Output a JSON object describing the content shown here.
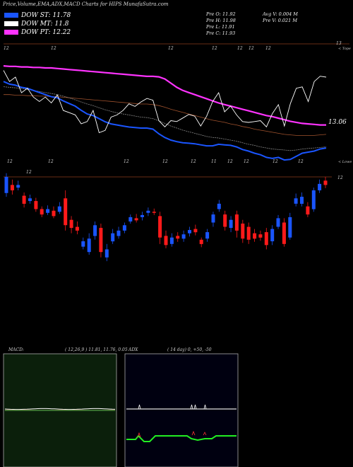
{
  "header": {
    "title": "Price,Volume,EMA,ADX,MACD Charts for HIPS MunafaSutra.com"
  },
  "legend": [
    {
      "label": "DOW ST: 11.78",
      "color": "#1a55ff"
    },
    {
      "label": "DOW MT: 11.8",
      "color": "#ffffff"
    },
    {
      "label": "DOW PT: 12.22",
      "color": "#ff33ff"
    }
  ],
  "stats": {
    "prev_o": "Pre   O: 11.92",
    "prev_h": "Pre   H: 11.98",
    "prev_l": "Pre   L: 11.91",
    "prev_c": "Pre   C: 11.93",
    "avg_v": "Avg V: 0.004   M",
    "prev_v": "Pre   V: 0.021 M"
  },
  "upper": {
    "top_tag": "13",
    "top_label": "< Tope",
    "last_value": "13.06",
    "lower_tag": "< Lowe",
    "date_ticks": [
      "12",
      "12",
      "12",
      "12",
      "12",
      "12",
      "12"
    ],
    "date_ticks2": [
      "12",
      "12",
      "12",
      "12",
      "12",
      "11",
      "12",
      "12",
      "12",
      "12"
    ]
  },
  "lower": {
    "right_label": "12",
    "date_ticks": [
      "12"
    ]
  },
  "macd": {
    "label": "MACD:",
    "params": "( 12,26,9 ) 11.81,  11.76,  0.05"
  },
  "adx": {
    "label": "ADX",
    "params": "( 14  day) 0, +50, -50"
  },
  "colors": {
    "bull": "#1a55ff",
    "bear": "#ff1a1a",
    "ema_fast": "#1a55ff",
    "ema_pt": "#ff33ff",
    "price": "#ffffff",
    "ema_mid": "#888888",
    "ema_slow": "#a0522d"
  },
  "chart_data": {
    "type": "candlestick",
    "title": "Price,Volume,EMA,ADX,MACD Charts for HIPS",
    "ema_last": {
      "st": 11.78,
      "mt": 11.8,
      "pt": 12.22
    },
    "previous_bar": {
      "open": 11.92,
      "high": 11.98,
      "low": 11.91,
      "close": 11.93,
      "volume_m": 0.021,
      "avg_volume_m": 0.004
    },
    "candles": [
      {
        "o": 12.25,
        "c": 12.55,
        "h": 12.62,
        "l": 12.18
      },
      {
        "o": 12.4,
        "c": 12.3,
        "h": 12.5,
        "l": 12.22
      },
      {
        "o": 12.35,
        "c": 12.4,
        "h": 12.48,
        "l": 12.3
      },
      {
        "o": 12.2,
        "c": 12.05,
        "h": 12.26,
        "l": 11.98
      },
      {
        "o": 12.1,
        "c": 12.15,
        "h": 12.22,
        "l": 12.05
      },
      {
        "o": 12.1,
        "c": 11.95,
        "h": 12.16,
        "l": 11.9
      },
      {
        "o": 11.95,
        "c": 11.85,
        "h": 12.0,
        "l": 11.8
      },
      {
        "o": 11.88,
        "c": 11.95,
        "h": 12.02,
        "l": 11.84
      },
      {
        "o": 11.92,
        "c": 11.82,
        "h": 12.0,
        "l": 11.78
      },
      {
        "o": 11.9,
        "c": 12.0,
        "h": 12.08,
        "l": 11.86
      },
      {
        "o": 12.15,
        "c": 11.65,
        "h": 12.3,
        "l": 11.55
      },
      {
        "o": 11.75,
        "c": 11.6,
        "h": 11.82,
        "l": 11.5
      },
      {
        "o": 11.62,
        "c": 11.55,
        "h": 11.72,
        "l": 11.48
      },
      {
        "o": 11.25,
        "c": 11.35,
        "h": 11.42,
        "l": 11.2
      },
      {
        "o": 11.15,
        "c": 11.4,
        "h": 11.5,
        "l": 11.1
      },
      {
        "o": 11.45,
        "c": 11.65,
        "h": 11.72,
        "l": 11.38
      },
      {
        "o": 11.6,
        "c": 11.15,
        "h": 11.68,
        "l": 11.05
      },
      {
        "o": 11.05,
        "c": 11.2,
        "h": 11.3,
        "l": 10.98
      },
      {
        "o": 11.35,
        "c": 11.5,
        "h": 11.58,
        "l": 11.3
      },
      {
        "o": 11.45,
        "c": 11.55,
        "h": 11.62,
        "l": 11.4
      },
      {
        "o": 11.55,
        "c": 11.65,
        "h": 11.7,
        "l": 11.5
      },
      {
        "o": 11.72,
        "c": 11.8,
        "h": 11.85,
        "l": 11.68
      },
      {
        "o": 11.78,
        "c": 11.74,
        "h": 11.86,
        "l": 11.7
      },
      {
        "o": 11.8,
        "c": 11.84,
        "h": 11.9,
        "l": 11.74
      },
      {
        "o": 11.88,
        "c": 11.92,
        "h": 11.98,
        "l": 11.82
      },
      {
        "o": 11.9,
        "c": 11.88,
        "h": 11.96,
        "l": 11.84
      },
      {
        "o": 11.82,
        "c": 11.42,
        "h": 11.9,
        "l": 11.3
      },
      {
        "o": 11.45,
        "c": 11.28,
        "h": 11.55,
        "l": 11.22
      },
      {
        "o": 11.3,
        "c": 11.42,
        "h": 11.5,
        "l": 11.25
      },
      {
        "o": 11.45,
        "c": 11.4,
        "h": 11.52,
        "l": 11.34
      },
      {
        "o": 11.4,
        "c": 11.48,
        "h": 11.55,
        "l": 11.34
      },
      {
        "o": 11.5,
        "c": 11.56,
        "h": 11.62,
        "l": 11.44
      },
      {
        "o": 11.58,
        "c": 11.52,
        "h": 11.66,
        "l": 11.46
      },
      {
        "o": 11.38,
        "c": 11.3,
        "h": 11.42,
        "l": 11.24
      },
      {
        "o": 11.4,
        "c": 11.52,
        "h": 11.58,
        "l": 11.34
      },
      {
        "o": 11.7,
        "c": 11.85,
        "h": 11.9,
        "l": 11.62
      },
      {
        "o": 11.95,
        "c": 12.05,
        "h": 12.12,
        "l": 11.9
      },
      {
        "o": 11.85,
        "c": 11.62,
        "h": 11.92,
        "l": 11.55
      },
      {
        "o": 11.6,
        "c": 11.75,
        "h": 11.82,
        "l": 11.52
      },
      {
        "o": 11.85,
        "c": 11.55,
        "h": 11.92,
        "l": 11.42
      },
      {
        "o": 11.68,
        "c": 11.4,
        "h": 11.75,
        "l": 11.32
      },
      {
        "o": 11.62,
        "c": 11.38,
        "h": 11.7,
        "l": 11.3
      },
      {
        "o": 11.5,
        "c": 11.4,
        "h": 11.58,
        "l": 11.34
      },
      {
        "o": 11.48,
        "c": 11.42,
        "h": 11.55,
        "l": 11.36
      },
      {
        "o": 11.52,
        "c": 11.28,
        "h": 11.6,
        "l": 11.2
      },
      {
        "o": 11.35,
        "c": 11.58,
        "h": 11.65,
        "l": 11.28
      },
      {
        "o": 11.62,
        "c": 11.78,
        "h": 11.84,
        "l": 11.58
      },
      {
        "o": 11.7,
        "c": 11.3,
        "h": 11.78,
        "l": 11.25
      },
      {
        "o": 11.42,
        "c": 11.8,
        "h": 11.88,
        "l": 11.38
      },
      {
        "o": 12.05,
        "c": 12.15,
        "h": 12.24,
        "l": 12.0
      },
      {
        "o": 12.05,
        "c": 12.18,
        "h": 12.26,
        "l": 12.0
      },
      {
        "o": 12.0,
        "c": 11.85,
        "h": 12.08,
        "l": 11.8
      },
      {
        "o": 11.95,
        "c": 12.3,
        "h": 12.35,
        "l": 11.9
      },
      {
        "o": 12.3,
        "c": 12.42,
        "h": 12.5,
        "l": 12.25
      },
      {
        "o": 12.48,
        "c": 12.4,
        "h": 12.55,
        "l": 12.34
      }
    ],
    "ema_series": {
      "pt": [
        13.35,
        13.34,
        13.34,
        13.33,
        13.33,
        13.32,
        13.32,
        13.31,
        13.31,
        13.3,
        13.29,
        13.28,
        13.27,
        13.26,
        13.25,
        13.24,
        13.23,
        13.22,
        13.21,
        13.2,
        13.19,
        13.18,
        13.17,
        13.16,
        13.15,
        13.15,
        13.14,
        13.1,
        13.02,
        12.94,
        12.88,
        12.84,
        12.8,
        12.76,
        12.72,
        12.68,
        12.64,
        12.61,
        12.58,
        12.55,
        12.52,
        12.49,
        12.46,
        12.43,
        12.4,
        12.38,
        12.35,
        12.32,
        12.29,
        12.27,
        12.25,
        12.24,
        12.23,
        12.22,
        12.22
      ],
      "st": [
        13.05,
        13.0,
        12.98,
        12.94,
        12.92,
        12.88,
        12.84,
        12.8,
        12.76,
        12.74,
        12.68,
        12.63,
        12.58,
        12.5,
        12.43,
        12.4,
        12.34,
        12.28,
        12.24,
        12.22,
        12.2,
        12.18,
        12.17,
        12.16,
        12.16,
        12.14,
        12.05,
        11.98,
        11.93,
        11.9,
        11.88,
        11.87,
        11.86,
        11.84,
        11.82,
        11.82,
        11.85,
        11.84,
        11.83,
        11.8,
        11.75,
        11.72,
        11.68,
        11.65,
        11.6,
        11.58,
        11.6,
        11.55,
        11.56,
        11.62,
        11.68,
        11.7,
        11.72,
        11.76,
        11.78
      ],
      "mt": [
        12.95,
        12.94,
        12.93,
        12.92,
        12.9,
        12.88,
        12.86,
        12.84,
        12.82,
        12.8,
        12.77,
        12.74,
        12.7,
        12.66,
        12.62,
        12.59,
        12.55,
        12.51,
        12.48,
        12.45,
        12.43,
        12.41,
        12.39,
        12.37,
        12.36,
        12.34,
        12.3,
        12.25,
        12.2,
        12.16,
        12.12,
        12.09,
        12.06,
        12.03,
        12.0,
        11.98,
        11.97,
        11.95,
        11.93,
        11.91,
        11.88,
        11.85,
        11.83,
        11.8,
        11.78,
        11.76,
        11.75,
        11.74,
        11.73,
        11.74,
        11.76,
        11.77,
        11.78,
        11.79,
        11.8
      ],
      "slow": [
        12.8,
        12.8,
        12.79,
        12.79,
        12.78,
        12.78,
        12.77,
        12.77,
        12.76,
        12.76,
        12.75,
        12.74,
        12.73,
        12.72,
        12.71,
        12.7,
        12.69,
        12.68,
        12.67,
        12.66,
        12.65,
        12.64,
        12.63,
        12.62,
        12.62,
        12.61,
        12.59,
        12.56,
        12.52,
        12.49,
        12.46,
        12.43,
        12.4,
        12.37,
        12.34,
        12.31,
        12.29,
        12.27,
        12.24,
        12.22,
        12.19,
        12.17,
        12.14,
        12.12,
        12.1,
        12.08,
        12.06,
        12.04,
        12.03,
        12.02,
        12.02,
        12.02,
        12.02,
        12.03,
        12.04
      ]
    },
    "macd_panel": {
      "macd": 11.81,
      "signal": 11.76,
      "hist": 0.05
    },
    "adx_panel": {
      "period_days": 14,
      "levels": [
        0,
        50,
        -50
      ]
    }
  }
}
